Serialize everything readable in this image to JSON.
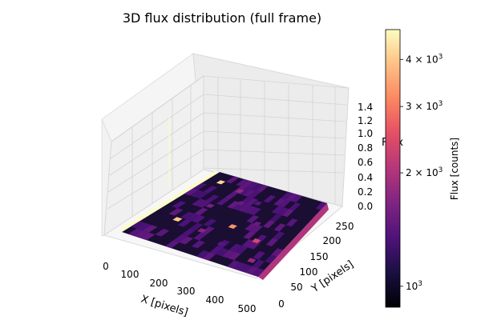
{
  "chart_data": {
    "type": "heatmap",
    "projection": "3d-surface",
    "title": "3D flux distribution (full frame)",
    "xlabel": "X [pixels]",
    "ylabel": "Y [pixels]",
    "zlabel": "Flux",
    "xlim": [
      0,
      550
    ],
    "ylim": [
      0,
      270
    ],
    "zlim": [
      0,
      1.5
    ],
    "x_ticks": [
      "0",
      "100",
      "200",
      "300",
      "400",
      "500"
    ],
    "y_ticks": [
      "0",
      "50",
      "100",
      "150",
      "200",
      "250"
    ],
    "z_ticks": [
      "0.0",
      "0.2",
      "0.4",
      "0.6",
      "0.8",
      "1.0",
      "1.2",
      "1.4"
    ],
    "grid": true,
    "colormap": "magma",
    "colorbar": {
      "label": "Flux [counts]",
      "scale": "log",
      "range": [
        880,
        4800
      ],
      "ticks": [
        {
          "value": 1000,
          "label": "10",
          "exp": "3"
        },
        {
          "value": 2000,
          "label": "2 × 10",
          "exp": "3"
        },
        {
          "value": 3000,
          "label": "3 × 10",
          "exp": "3"
        },
        {
          "value": 4000,
          "label": "4 × 10",
          "exp": "3"
        }
      ]
    },
    "hot_pixels": [
      {
        "x": 60,
        "y": 240,
        "flux": 4200
      },
      {
        "x": 170,
        "y": 230,
        "flux": 1800
      },
      {
        "x": 230,
        "y": 195,
        "flux": 1500
      },
      {
        "x": 290,
        "y": 210,
        "flux": 1400
      },
      {
        "x": 140,
        "y": 160,
        "flux": 1600
      },
      {
        "x": 300,
        "y": 120,
        "flux": 3300
      },
      {
        "x": 370,
        "y": 150,
        "flux": 1500
      },
      {
        "x": 100,
        "y": 90,
        "flux": 4000
      },
      {
        "x": 220,
        "y": 80,
        "flux": 1700
      },
      {
        "x": 430,
        "y": 100,
        "flux": 2400
      },
      {
        "x": 330,
        "y": 60,
        "flux": 1400
      },
      {
        "x": 480,
        "y": 40,
        "flux": 1800
      }
    ]
  }
}
